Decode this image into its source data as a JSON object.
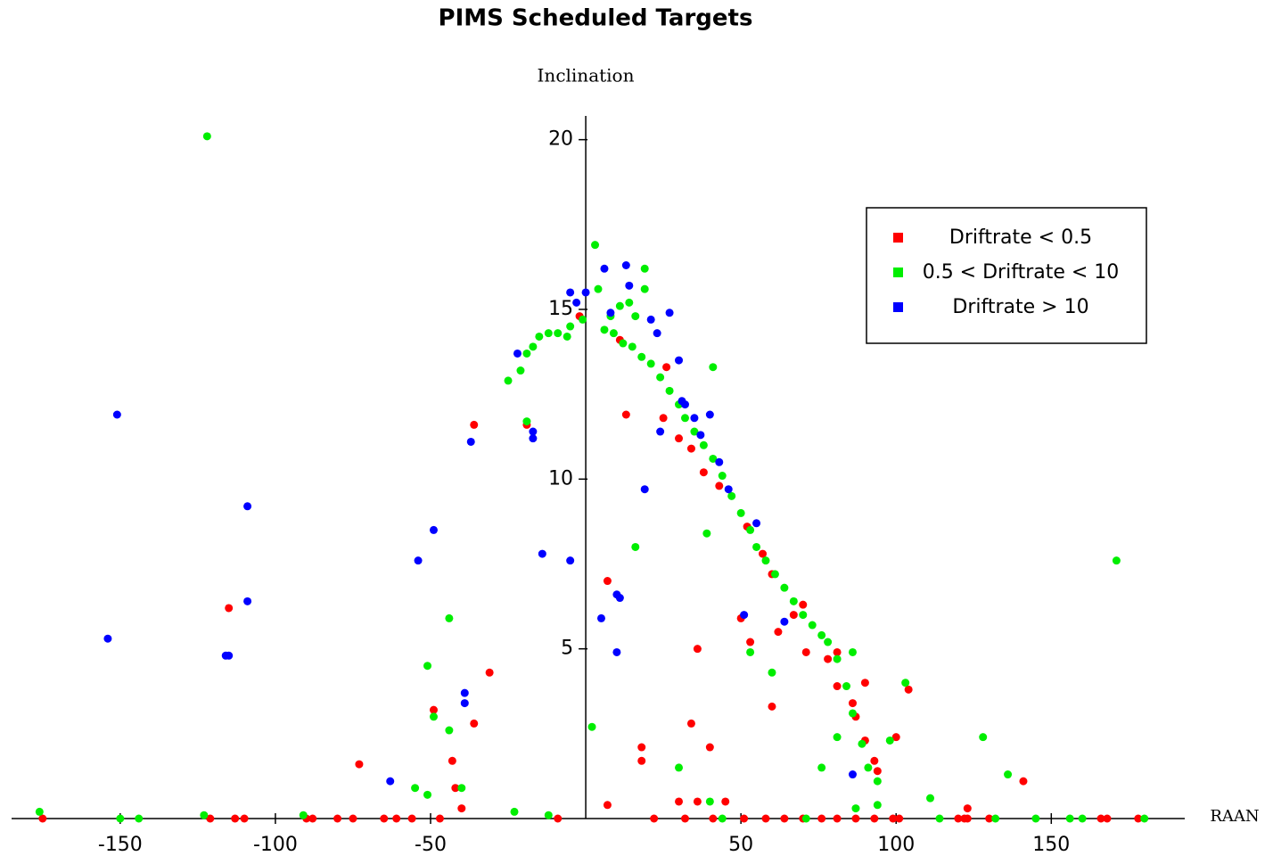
{
  "chart_data": {
    "type": "scatter",
    "title": "PIMS Scheduled Targets",
    "x_label": "RAAN",
    "y_label": "Inclination",
    "xlim": [
      -185,
      193
    ],
    "ylim": [
      0,
      20.7
    ],
    "xticks": [
      -150,
      -100,
      -50,
      50,
      100,
      150
    ],
    "yticks": [
      5,
      10,
      15,
      20
    ],
    "legend": "upper right",
    "series": [
      {
        "name": "Driftrate < 0.5",
        "color": "#ff0000",
        "x": [
          -175,
          -121,
          -113,
          -110,
          -90,
          -88,
          -80,
          -75,
          -65,
          -61,
          -56,
          -47,
          -9,
          22,
          32,
          41,
          51,
          58,
          64,
          70,
          76,
          81,
          87,
          93,
          99,
          101,
          120,
          122,
          123,
          130,
          166,
          168,
          178,
          -115,
          -36,
          -19,
          -31,
          -36,
          -49,
          -43,
          -42,
          -40,
          -73,
          -2,
          7,
          7,
          18,
          18,
          34,
          40,
          36,
          30,
          36,
          45,
          13,
          11,
          26,
          25,
          30,
          34,
          38,
          43,
          50,
          53,
          52,
          57,
          60,
          60,
          62,
          67,
          70,
          71,
          81,
          78,
          90,
          81,
          86,
          87,
          90,
          93,
          94,
          100,
          104,
          123,
          141
        ],
        "values": [
          0,
          0,
          0,
          0,
          0,
          0,
          0,
          0,
          0,
          0,
          0,
          0,
          0,
          0,
          0,
          0,
          0,
          0,
          0,
          0,
          0,
          0,
          0,
          0,
          0,
          0,
          0,
          0,
          0,
          0,
          0,
          0,
          0,
          6.2,
          11.6,
          11.6,
          4.3,
          2.8,
          3.2,
          1.7,
          0.9,
          0.3,
          1.6,
          14.8,
          7,
          0.4,
          2.1,
          1.7,
          2.8,
          2.1,
          5,
          0.5,
          0.5,
          0.5,
          11.9,
          14.1,
          13.3,
          11.8,
          11.2,
          10.9,
          10.2,
          9.8,
          5.9,
          5.2,
          8.6,
          7.8,
          7.2,
          3.3,
          5.5,
          6,
          6.3,
          4.9,
          4.9,
          4.7,
          4,
          3.9,
          3.4,
          3,
          2.3,
          1.7,
          1.4,
          2.4,
          3.8,
          0.3,
          1.1
        ]
      },
      {
        "name": "0.5 < Driftrate < 10",
        "color": "#00ee00",
        "x": [
          -122,
          -176,
          -150,
          -144,
          -123,
          -91,
          -51,
          -44,
          -49,
          -44,
          -40,
          -55,
          -51,
          -23,
          -12,
          2,
          -19,
          -25,
          -21,
          -19,
          -17,
          -15,
          -12,
          -9,
          -6,
          -5,
          -1,
          3,
          4,
          8,
          11,
          19,
          19,
          14,
          16,
          6,
          9,
          12,
          15,
          18,
          21,
          24,
          27,
          30,
          32,
          35,
          38,
          41,
          44,
          47,
          50,
          53,
          55,
          58,
          61,
          64,
          67,
          70,
          73,
          76,
          78,
          81,
          84,
          86,
          89,
          91,
          94,
          41,
          39,
          16,
          53,
          60,
          86,
          81,
          76,
          98,
          103,
          111,
          128,
          136,
          171,
          30,
          40,
          44,
          87,
          94,
          145,
          156,
          160,
          180,
          71,
          114,
          132
        ],
        "values": [
          20.1,
          0.2,
          0,
          0,
          0.1,
          0.1,
          4.5,
          5.9,
          3,
          2.6,
          0.9,
          0.9,
          0.7,
          0.2,
          0.1,
          2.7,
          11.7,
          12.9,
          13.2,
          13.7,
          13.9,
          14.2,
          14.3,
          14.3,
          14.2,
          14.5,
          14.7,
          16.9,
          15.6,
          14.8,
          15.1,
          16.2,
          15.6,
          15.2,
          14.8,
          14.4,
          14.3,
          14,
          13.9,
          13.6,
          13.4,
          13,
          12.6,
          12.2,
          11.8,
          11.4,
          11,
          10.6,
          10.1,
          9.5,
          9,
          8.5,
          8,
          7.6,
          7.2,
          6.8,
          6.4,
          6,
          5.7,
          5.4,
          5.2,
          4.7,
          3.9,
          3.1,
          2.2,
          1.5,
          1.1,
          13.3,
          8.4,
          8,
          4.9,
          4.3,
          4.9,
          2.4,
          1.5,
          2.3,
          4,
          0.6,
          2.4,
          1.3,
          7.6,
          1.5,
          0.5,
          0,
          0.3,
          0.4,
          0,
          0,
          0,
          0,
          0,
          0,
          0
        ]
      },
      {
        "name": "Driftrate > 10",
        "color": "#0000ff",
        "x": [
          -151,
          -154,
          -109,
          -109,
          -116,
          -115,
          -54,
          -49,
          -37,
          -39,
          -39,
          -63,
          -17,
          -17,
          -22,
          -14,
          -5,
          -5,
          -3,
          0,
          6,
          13,
          14,
          8,
          21,
          27,
          23,
          30,
          31,
          32,
          35,
          40,
          37,
          24,
          19,
          10,
          11,
          10,
          5,
          46,
          55,
          51,
          64,
          86,
          43
        ],
        "values": [
          11.9,
          5.3,
          9.2,
          6.4,
          4.8,
          4.8,
          7.6,
          8.5,
          11.1,
          3.7,
          3.4,
          1.1,
          11.4,
          11.2,
          13.7,
          7.8,
          7.6,
          15.5,
          15.2,
          15.5,
          16.2,
          16.3,
          15.7,
          14.9,
          14.7,
          14.9,
          14.3,
          13.5,
          12.3,
          12.2,
          11.8,
          11.9,
          11.3,
          11.4,
          9.7,
          6.6,
          6.5,
          4.9,
          5.9,
          9.7,
          8.7,
          6,
          5.8,
          1.3,
          10.5
        ]
      }
    ]
  }
}
